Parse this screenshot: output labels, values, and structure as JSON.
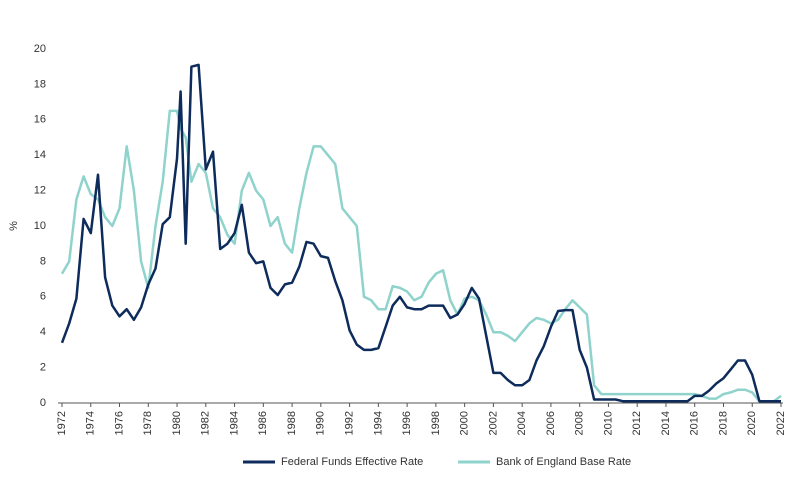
{
  "chart_data": {
    "type": "line",
    "ylabel": "%",
    "x": [
      1972,
      1972.5,
      1973,
      1973.5,
      1974,
      1974.5,
      1975,
      1975.5,
      1976,
      1976.5,
      1977,
      1977.5,
      1978,
      1978.5,
      1979,
      1979.5,
      1980,
      1980.25,
      1980.6,
      1981,
      1981.5,
      1982,
      1982.5,
      1983,
      1983.5,
      1984,
      1984.5,
      1985,
      1985.5,
      1986,
      1986.5,
      1987,
      1987.5,
      1988,
      1988.5,
      1989,
      1989.5,
      1990,
      1990.5,
      1991,
      1991.5,
      1992,
      1992.5,
      1993,
      1993.5,
      1994,
      1994.5,
      1995,
      1995.5,
      1996,
      1996.5,
      1997,
      1997.5,
      1998,
      1998.5,
      1999,
      1999.5,
      2000,
      2000.5,
      2001,
      2001.5,
      2002,
      2002.5,
      2003,
      2003.5,
      2004,
      2004.5,
      2005,
      2005.5,
      2006,
      2006.5,
      2007,
      2007.5,
      2008,
      2008.5,
      2009,
      2009.5,
      2010,
      2010.5,
      2011,
      2011.5,
      2012,
      2012.5,
      2013,
      2013.5,
      2014,
      2014.5,
      2015,
      2015.5,
      2016,
      2016.5,
      2017,
      2017.5,
      2018,
      2018.5,
      2019,
      2019.5,
      2020,
      2020.5,
      2021,
      2021.5,
      2022
    ],
    "series": [
      {
        "name": "Federal Funds Effective Rate",
        "color": "#0d2b5b",
        "values": [
          3.4,
          4.5,
          5.9,
          10.4,
          9.6,
          12.9,
          7.1,
          5.5,
          4.9,
          5.3,
          4.7,
          5.4,
          6.7,
          7.6,
          10.1,
          10.5,
          13.8,
          17.6,
          9.0,
          19.0,
          19.1,
          13.2,
          14.2,
          8.7,
          9.0,
          9.6,
          11.2,
          8.5,
          7.9,
          8.0,
          6.5,
          6.1,
          6.7,
          6.8,
          7.7,
          9.1,
          9.0,
          8.3,
          8.2,
          6.9,
          5.8,
          4.1,
          3.3,
          3.0,
          3.0,
          3.1,
          4.3,
          5.5,
          6.0,
          5.4,
          5.3,
          5.3,
          5.5,
          5.5,
          5.5,
          4.8,
          5.0,
          5.6,
          6.5,
          5.9,
          3.8,
          1.7,
          1.7,
          1.3,
          1.0,
          1.0,
          1.3,
          2.4,
          3.2,
          4.3,
          5.2,
          5.25,
          5.25,
          3.0,
          2.0,
          0.2,
          0.2,
          0.2,
          0.2,
          0.1,
          0.1,
          0.1,
          0.1,
          0.1,
          0.1,
          0.1,
          0.1,
          0.1,
          0.1,
          0.4,
          0.4,
          0.7,
          1.1,
          1.4,
          1.9,
          2.4,
          2.4,
          1.6,
          0.1,
          0.1,
          0.1,
          0.1
        ]
      },
      {
        "name": "Bank of England Base Rate",
        "color": "#8fd3cc",
        "values": [
          7.3,
          8.0,
          11.5,
          12.8,
          11.8,
          11.5,
          10.5,
          10.0,
          11.0,
          14.5,
          12.0,
          8.0,
          6.5,
          10.0,
          12.5,
          16.5,
          16.5,
          15.5,
          15.0,
          12.5,
          13.5,
          13.0,
          11.0,
          10.5,
          9.5,
          9.0,
          12.0,
          13.0,
          12.0,
          11.5,
          10.0,
          10.5,
          9.0,
          8.5,
          11.0,
          13.0,
          14.5,
          14.5,
          14.0,
          13.5,
          11.0,
          10.5,
          10.0,
          6.0,
          5.8,
          5.3,
          5.3,
          6.6,
          6.5,
          6.3,
          5.8,
          6.0,
          6.8,
          7.3,
          7.5,
          5.8,
          5.0,
          5.9,
          6.0,
          5.8,
          5.0,
          4.0,
          4.0,
          3.8,
          3.5,
          4.0,
          4.5,
          4.8,
          4.7,
          4.5,
          4.7,
          5.3,
          5.8,
          5.4,
          5.0,
          1.0,
          0.5,
          0.5,
          0.5,
          0.5,
          0.5,
          0.5,
          0.5,
          0.5,
          0.5,
          0.5,
          0.5,
          0.5,
          0.5,
          0.5,
          0.4,
          0.25,
          0.25,
          0.5,
          0.6,
          0.75,
          0.75,
          0.6,
          0.1,
          0.1,
          0.1,
          0.4
        ]
      }
    ],
    "xlim": [
      1972,
      2022
    ],
    "xticks": [
      1972,
      1974,
      1976,
      1978,
      1980,
      1982,
      1984,
      1986,
      1988,
      1990,
      1992,
      1994,
      1996,
      1998,
      2000,
      2002,
      2004,
      2006,
      2008,
      2010,
      2012,
      2014,
      2016,
      2018,
      2020,
      2022
    ],
    "ylim": [
      0,
      20
    ],
    "yticks": [
      0,
      2,
      4,
      6,
      8,
      10,
      12,
      14,
      16,
      18,
      20
    ],
    "grid": false,
    "legend": "bottom"
  }
}
